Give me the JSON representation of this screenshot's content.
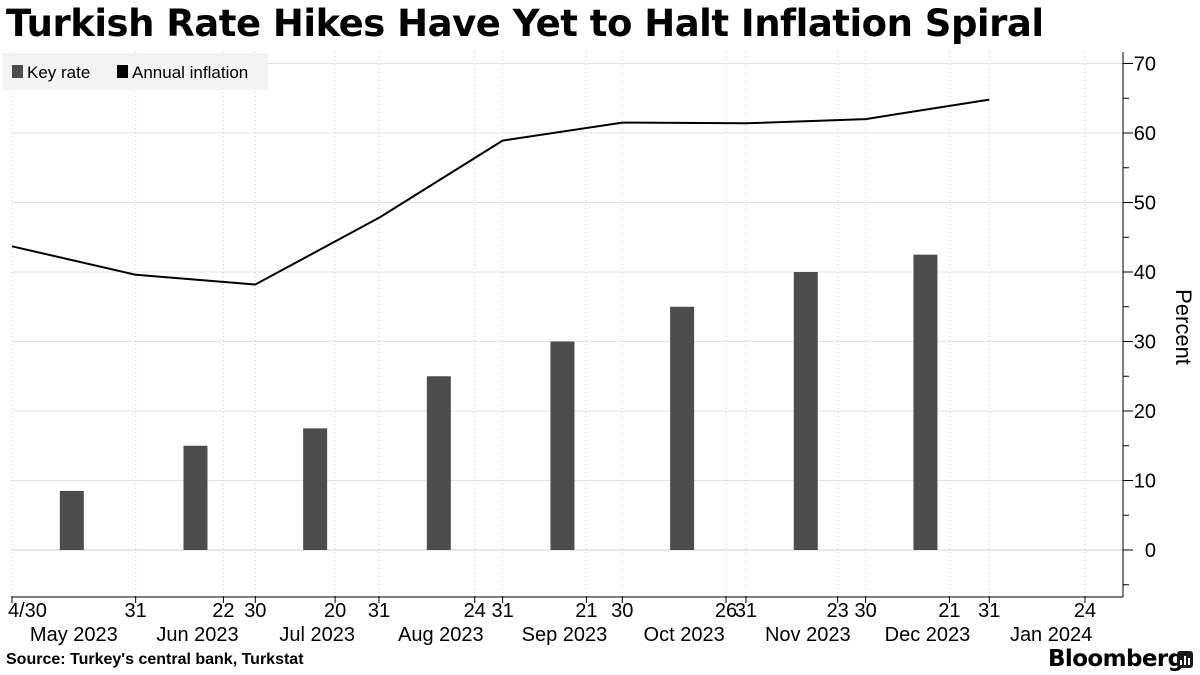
{
  "page": {
    "title": "Turkish Rate Hikes Have Yet to Halt Inflation Spiral",
    "source": "Source: Turkey's central bank, Turkstat",
    "brand": "Bloomberg"
  },
  "chart_data": {
    "type": "bar+line",
    "title": "Turkish Rate Hikes Have Yet to Halt Inflation Spiral",
    "ylabel": "Percent",
    "ylim": [
      -6,
      71
    ],
    "yticks": [
      0,
      10,
      20,
      30,
      40,
      50,
      60,
      70
    ],
    "x_ticks": [
      {
        "date": "2023-04-30",
        "label": "4/30"
      },
      {
        "date": "2023-05-31",
        "label": "31"
      },
      {
        "date": "2023-06-22",
        "label": "22"
      },
      {
        "date": "2023-06-30",
        "label": "30"
      },
      {
        "date": "2023-07-20",
        "label": "20"
      },
      {
        "date": "2023-07-31",
        "label": "31"
      },
      {
        "date": "2023-08-24",
        "label": "24"
      },
      {
        "date": "2023-08-31",
        "label": "31"
      },
      {
        "date": "2023-09-21",
        "label": "21"
      },
      {
        "date": "2023-09-30",
        "label": "30"
      },
      {
        "date": "2023-10-26",
        "label": "26"
      },
      {
        "date": "2023-10-31",
        "label": "31"
      },
      {
        "date": "2023-11-23",
        "label": "23"
      },
      {
        "date": "2023-11-30",
        "label": "30"
      },
      {
        "date": "2023-12-21",
        "label": "21"
      },
      {
        "date": "2023-12-31",
        "label": "31"
      },
      {
        "date": "2024-01-24",
        "label": "24"
      }
    ],
    "month_labels": [
      {
        "label": "May 2023",
        "date": "2023-05-15"
      },
      {
        "label": "Jun 2023",
        "date": "2023-06-15"
      },
      {
        "label": "Jul 2023",
        "date": "2023-07-15"
      },
      {
        "label": "Aug 2023",
        "date": "2023-08-15"
      },
      {
        "label": "Sep 2023",
        "date": "2023-09-15"
      },
      {
        "label": "Oct 2023",
        "date": "2023-10-15"
      },
      {
        "label": "Nov 2023",
        "date": "2023-11-15"
      },
      {
        "label": "Dec 2023",
        "date": "2023-12-15"
      },
      {
        "label": "Jan 2024",
        "date": "2024-01-15"
      }
    ],
    "series": [
      {
        "name": "Key rate",
        "kind": "bar",
        "color": "#4d4d4d",
        "points": [
          {
            "date": "2023-05-15",
            "value": 8.5
          },
          {
            "date": "2023-06-15",
            "value": 15
          },
          {
            "date": "2023-07-15",
            "value": 17.5
          },
          {
            "date": "2023-08-15",
            "value": 25
          },
          {
            "date": "2023-09-15",
            "value": 30
          },
          {
            "date": "2023-10-15",
            "value": 35
          },
          {
            "date": "2023-11-15",
            "value": 40
          },
          {
            "date": "2023-12-15",
            "value": 42.5
          }
        ]
      },
      {
        "name": "Annual inflation",
        "kind": "line",
        "color": "#000000",
        "points": [
          {
            "date": "2023-04-30",
            "value": 43.7
          },
          {
            "date": "2023-05-31",
            "value": 39.6
          },
          {
            "date": "2023-06-30",
            "value": 38.2
          },
          {
            "date": "2023-07-31",
            "value": 47.8
          },
          {
            "date": "2023-08-31",
            "value": 58.9
          },
          {
            "date": "2023-09-30",
            "value": 61.5
          },
          {
            "date": "2023-10-31",
            "value": 61.4
          },
          {
            "date": "2023-11-30",
            "value": 62.0
          },
          {
            "date": "2023-12-31",
            "value": 64.8
          }
        ]
      }
    ],
    "legend": {
      "position": "top-left",
      "items": [
        "Key rate",
        "Annual inflation"
      ]
    },
    "grid": {
      "vertical": "dotted",
      "horizontal": "solid"
    }
  }
}
